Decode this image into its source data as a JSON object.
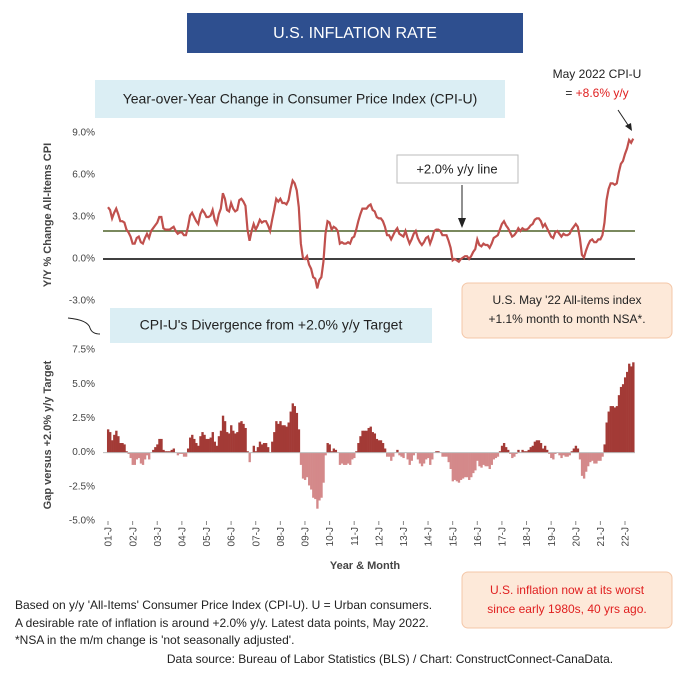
{
  "title": "U.S. INFLATION RATE",
  "chart_data": [
    {
      "type": "line",
      "title": "Year-over-Year Change in Consumer Price Index (CPI-U)",
      "y_label": "Y/Y % Change All-Items CPI",
      "color": "#c0504d",
      "ylim": [
        -3,
        9
      ],
      "yticks": [
        {
          "value": 9,
          "label": "9.0%"
        },
        {
          "value": 6,
          "label": "6.0%"
        },
        {
          "value": 3,
          "label": "3.0%"
        },
        {
          "value": 0,
          "label": "0.0%"
        },
        {
          "value": -3,
          "label": "-3.0%"
        }
      ],
      "reference_line": {
        "value": 2,
        "color": "#4f6228",
        "label": "+2.0% y/y line"
      },
      "annotation": {
        "line1": "May 2022 CPI-U",
        "prefix": "= ",
        "value_text": "+8.6% y/y"
      },
      "callout": {
        "line1": "U.S. May '22 All-items index",
        "line2": "+1.1% month to month NSA*."
      },
      "values": [
        3.7,
        3.5,
        2.9,
        3.3,
        3.6,
        3.2,
        2.7,
        2.7,
        2.6,
        2.1,
        1.9,
        1.6,
        1.1,
        1.1,
        1.5,
        1.6,
        1.2,
        1.1,
        1.5,
        1.8,
        1.5,
        2.0,
        2.2,
        2.4,
        2.6,
        3.0,
        3.0,
        2.2,
        2.1,
        2.1,
        2.1,
        2.2,
        2.3,
        2.0,
        1.8,
        1.9,
        1.9,
        1.7,
        1.7,
        2.3,
        3.1,
        3.3,
        3.0,
        2.7,
        2.5,
        3.2,
        3.5,
        3.3,
        3.0,
        3.0,
        3.1,
        3.5,
        2.8,
        2.5,
        3.2,
        3.6,
        4.7,
        4.3,
        3.5,
        3.4,
        4.0,
        3.6,
        3.4,
        3.5,
        4.2,
        4.3,
        4.1,
        3.8,
        2.1,
        1.3,
        2.0,
        2.5,
        2.1,
        2.4,
        2.8,
        2.6,
        2.7,
        2.7,
        2.4,
        2.0,
        2.8,
        3.5,
        4.3,
        4.1,
        4.3,
        4.0,
        4.0,
        3.9,
        4.2,
        5.0,
        5.6,
        5.4,
        4.9,
        3.7,
        1.1,
        0.1,
        0.0,
        0.2,
        -0.4,
        -0.7,
        -1.3,
        -1.4,
        -2.1,
        -1.5,
        -1.3,
        -0.2,
        1.8,
        2.7,
        2.6,
        2.1,
        2.3,
        2.2,
        2.0,
        1.1,
        1.2,
        1.1,
        1.1,
        1.2,
        1.1,
        1.5,
        1.6,
        2.1,
        2.7,
        3.2,
        3.6,
        3.6,
        3.6,
        3.8,
        3.9,
        3.5,
        3.4,
        3.0,
        2.9,
        2.9,
        2.7,
        2.3,
        1.7,
        1.7,
        1.4,
        1.7,
        2.0,
        2.2,
        1.8,
        1.7,
        1.6,
        2.0,
        1.5,
        1.1,
        1.4,
        1.8,
        2.0,
        1.5,
        1.2,
        1.0,
        1.2,
        1.5,
        1.6,
        1.1,
        1.5,
        2.0,
        2.1,
        2.1,
        2.0,
        1.7,
        1.7,
        1.7,
        1.3,
        0.8,
        -0.1,
        0.0,
        -0.1,
        -0.2,
        0.0,
        0.1,
        0.2,
        0.2,
        0.0,
        0.2,
        0.5,
        0.7,
        1.4,
        1.0,
        0.9,
        1.1,
        1.0,
        1.0,
        0.8,
        1.1,
        1.5,
        1.6,
        1.7,
        2.1,
        2.5,
        2.7,
        2.4,
        2.2,
        1.9,
        1.6,
        1.7,
        1.9,
        2.2,
        2.0,
        2.2,
        2.1,
        2.1,
        2.2,
        2.4,
        2.5,
        2.8,
        2.9,
        2.9,
        2.7,
        2.3,
        2.5,
        2.2,
        1.9,
        1.6,
        1.5,
        1.9,
        2.0,
        1.8,
        1.6,
        1.8,
        1.7,
        1.7,
        1.8,
        2.1,
        2.3,
        2.5,
        2.3,
        1.5,
        0.3,
        0.1,
        0.6,
        1.0,
        1.3,
        1.4,
        1.2,
        1.2,
        1.4,
        1.4,
        1.7,
        2.6,
        4.2,
        5.0,
        5.4,
        5.4,
        5.3,
        5.4,
        6.2,
        6.8,
        7.0,
        7.5,
        7.9,
        8.5,
        8.3,
        8.6
      ]
    },
    {
      "type": "area",
      "title": "CPI-U's Divergence from +2.0% y/y Target",
      "y_label": "Gap versus +2.0% y/y Target",
      "x_label": "Year & Month",
      "color_positive": "#a33a36",
      "color_negative": "#d4898a",
      "ylim": [
        -5,
        7.5
      ],
      "yticks": [
        {
          "value": 7.5,
          "label": "7.5%"
        },
        {
          "value": 5,
          "label": "5.0%"
        },
        {
          "value": 2.5,
          "label": "2.5%"
        },
        {
          "value": 0,
          "label": "0.0%"
        },
        {
          "value": -2.5,
          "label": "-2.5%"
        },
        {
          "value": -5,
          "label": "-5.0%"
        }
      ],
      "callout": {
        "line1": "U.S. inflation now at its worst",
        "line2": "since early 1980s, 40 yrs ago."
      },
      "categories": [
        "01-J",
        null,
        null,
        null,
        null,
        null,
        null,
        null,
        null,
        null,
        null,
        null,
        "02-J",
        null,
        null,
        null,
        null,
        null,
        null,
        null,
        null,
        null,
        null,
        null,
        "03-J",
        null,
        null,
        null,
        null,
        null,
        null,
        null,
        null,
        null,
        null,
        null,
        "04-J",
        null,
        null,
        null,
        null,
        null,
        null,
        null,
        null,
        null,
        null,
        null,
        "05-J",
        null,
        null,
        null,
        null,
        null,
        null,
        null,
        null,
        null,
        null,
        null,
        "06-J",
        null,
        null,
        null,
        null,
        null,
        null,
        null,
        null,
        null,
        null,
        null,
        "07-J",
        null,
        null,
        null,
        null,
        null,
        null,
        null,
        null,
        null,
        null,
        null,
        "08-J",
        null,
        null,
        null,
        null,
        null,
        null,
        null,
        null,
        null,
        null,
        null,
        "09-J",
        null,
        null,
        null,
        null,
        null,
        null,
        null,
        null,
        null,
        null,
        null,
        "10-J",
        null,
        null,
        null,
        null,
        null,
        null,
        null,
        null,
        null,
        null,
        null,
        "11-J",
        null,
        null,
        null,
        null,
        null,
        null,
        null,
        null,
        null,
        null,
        null,
        "12-J",
        null,
        null,
        null,
        null,
        null,
        null,
        null,
        null,
        null,
        null,
        null,
        "13-J",
        null,
        null,
        null,
        null,
        null,
        null,
        null,
        null,
        null,
        null,
        null,
        "14-J",
        null,
        null,
        null,
        null,
        null,
        null,
        null,
        null,
        null,
        null,
        null,
        "15-J",
        null,
        null,
        null,
        null,
        null,
        null,
        null,
        null,
        null,
        null,
        null,
        "16-J",
        null,
        null,
        null,
        null,
        null,
        null,
        null,
        null,
        null,
        null,
        null,
        "17-J",
        null,
        null,
        null,
        null,
        null,
        null,
        null,
        null,
        null,
        null,
        null,
        "18-J",
        null,
        null,
        null,
        null,
        null,
        null,
        null,
        null,
        null,
        null,
        null,
        "19-J",
        null,
        null,
        null,
        null,
        null,
        null,
        null,
        null,
        null,
        null,
        null,
        "20-J",
        null,
        null,
        null,
        null,
        null,
        null,
        null,
        null,
        null,
        null,
        null,
        "21-J",
        null,
        null,
        null,
        null,
        null,
        null,
        null,
        null,
        null,
        null,
        null,
        "22-J",
        null,
        null,
        null,
        null
      ],
      "values": [
        1.7,
        1.5,
        0.9,
        1.3,
        1.6,
        1.2,
        0.7,
        0.7,
        0.6,
        0.1,
        -0.1,
        -0.4,
        -0.9,
        -0.9,
        -0.5,
        -0.4,
        -0.8,
        -0.9,
        -0.5,
        -0.2,
        -0.5,
        0.0,
        0.2,
        0.4,
        0.6,
        1.0,
        1.0,
        0.2,
        0.1,
        0.1,
        0.1,
        0.2,
        0.3,
        0.0,
        -0.2,
        -0.1,
        -0.1,
        -0.3,
        -0.3,
        0.3,
        1.1,
        1.3,
        1.0,
        0.7,
        0.5,
        1.2,
        1.5,
        1.3,
        1.0,
        1.0,
        1.1,
        1.5,
        0.8,
        0.5,
        1.2,
        1.6,
        2.7,
        2.3,
        1.5,
        1.4,
        2.0,
        1.6,
        1.4,
        1.5,
        2.2,
        2.3,
        2.1,
        1.8,
        0.1,
        -0.7,
        0.0,
        0.5,
        0.1,
        0.4,
        0.8,
        0.6,
        0.7,
        0.7,
        0.4,
        0.0,
        0.8,
        1.5,
        2.3,
        2.1,
        2.3,
        2.0,
        2.0,
        1.9,
        2.2,
        3.0,
        3.6,
        3.4,
        2.9,
        1.7,
        -0.9,
        -1.9,
        -2.0,
        -1.8,
        -2.4,
        -2.7,
        -3.3,
        -3.4,
        -4.1,
        -3.5,
        -3.3,
        -2.2,
        -0.2,
        0.7,
        0.6,
        0.1,
        0.3,
        0.2,
        0.0,
        -0.9,
        -0.8,
        -0.9,
        -0.9,
        -0.8,
        -0.9,
        -0.5,
        -0.4,
        0.1,
        0.7,
        1.2,
        1.6,
        1.6,
        1.6,
        1.8,
        1.9,
        1.5,
        1.4,
        1.0,
        0.9,
        0.9,
        0.7,
        0.3,
        -0.3,
        -0.3,
        -0.6,
        -0.3,
        0.0,
        0.2,
        -0.2,
        -0.3,
        -0.4,
        0.0,
        -0.5,
        -0.9,
        -0.6,
        -0.2,
        0.0,
        -0.5,
        -0.8,
        -1.0,
        -0.8,
        -0.5,
        -0.4,
        -0.9,
        -0.5,
        0.0,
        0.1,
        0.1,
        0.0,
        -0.3,
        -0.3,
        -0.3,
        -0.7,
        -1.2,
        -2.1,
        -2.0,
        -2.1,
        -2.2,
        -2.0,
        -1.9,
        -1.8,
        -1.8,
        -2.0,
        -1.8,
        -1.5,
        -1.3,
        -0.6,
        -1.0,
        -1.1,
        -0.9,
        -1.0,
        -1.0,
        -1.2,
        -0.9,
        -0.5,
        -0.4,
        -0.3,
        0.1,
        0.5,
        0.7,
        0.4,
        0.2,
        -0.1,
        -0.4,
        -0.3,
        -0.1,
        0.2,
        0.0,
        0.2,
        0.1,
        0.1,
        0.2,
        0.4,
        0.5,
        0.8,
        0.9,
        0.9,
        0.7,
        0.3,
        0.5,
        0.2,
        -0.1,
        -0.4,
        -0.5,
        -0.1,
        0.0,
        -0.2,
        -0.4,
        -0.2,
        -0.3,
        -0.3,
        -0.2,
        0.1,
        0.3,
        0.5,
        0.3,
        -0.5,
        -1.7,
        -1.9,
        -1.4,
        -1.0,
        -0.7,
        -0.6,
        -0.8,
        -0.8,
        -0.6,
        -0.6,
        -0.3,
        0.6,
        2.2,
        3.0,
        3.4,
        3.4,
        3.3,
        3.4,
        4.2,
        4.8,
        5.0,
        5.5,
        5.9,
        6.5,
        6.3,
        6.6
      ]
    }
  ],
  "footnotes": [
    "Based on y/y 'All-Items' Consumer Price Index (CPI-U). U = Urban consumers.",
    "A desirable rate of inflation is around +2.0% y/y. Latest data points, May 2022.",
    "*NSA in the m/m change is 'not seasonally adjusted'."
  ],
  "source": "Data source: Bureau of Labor Statistics (BLS) / Chart: ConstructConnect-CanaData."
}
